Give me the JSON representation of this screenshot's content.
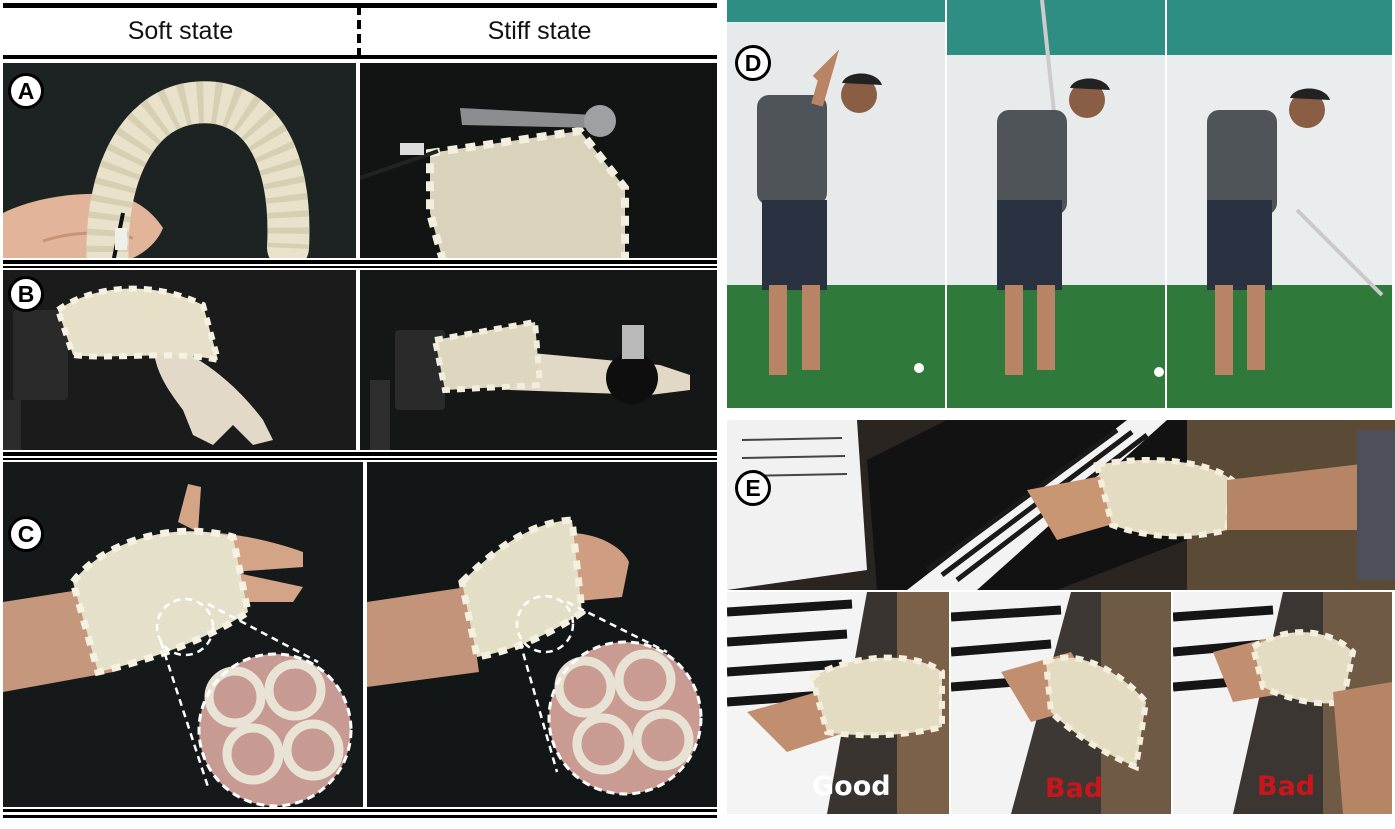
{
  "header": {
    "soft_label": "Soft state",
    "stiff_label": "Stiff state"
  },
  "panels": {
    "a": "A",
    "b": "B",
    "c": "C",
    "d": "D",
    "e": "E"
  },
  "piano_results": {
    "good": "Good",
    "bad_1": "Bad",
    "bad_2": "Bad"
  },
  "colors": {
    "bad_text": "#c8161d",
    "good_text": "#ffffff",
    "studio_bg": "#1a1d1c",
    "mesh": "#e6e1cc",
    "golf_turf": "#2f7a3a",
    "golf_backdrop": "#e9ecec"
  }
}
